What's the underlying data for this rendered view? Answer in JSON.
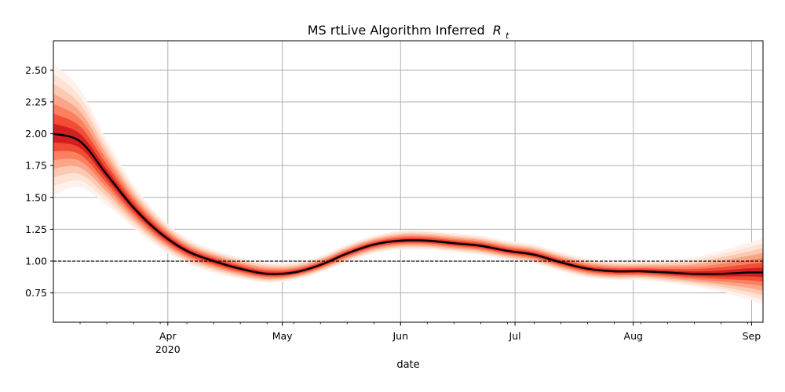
{
  "chart_data": {
    "type": "line",
    "title": "MS rtLive Algorithm Inferred",
    "title_symbol": "R",
    "title_subscript": "t",
    "xlabel": "date",
    "ylabel": "",
    "grid": true,
    "ylim": [
      0.52,
      2.73
    ],
    "xlim": [
      "2020-03-02",
      "2020-09-04"
    ],
    "y_ticks": [
      "0.75",
      "1.00",
      "1.25",
      "1.50",
      "1.75",
      "2.00",
      "2.25",
      "2.50"
    ],
    "x_ticks": [
      {
        "date": "2020-04-01",
        "label": "Apr",
        "sublabel": "2020"
      },
      {
        "date": "2020-05-01",
        "label": "May",
        "sublabel": ""
      },
      {
        "date": "2020-06-01",
        "label": "Jun",
        "sublabel": ""
      },
      {
        "date": "2020-07-01",
        "label": "Jul",
        "sublabel": ""
      },
      {
        "date": "2020-08-01",
        "label": "Aug",
        "sublabel": ""
      },
      {
        "date": "2020-09-01",
        "label": "Sep",
        "sublabel": ""
      }
    ],
    "reference_line": {
      "y": 1.0,
      "style": "dashed",
      "color": "#000000"
    },
    "colors": {
      "line": "#000000",
      "band_light": "#fde0d2",
      "band_mid": "#fb8a6a",
      "band_dark": "#cb181d",
      "grid": "#b0b0b0"
    },
    "series": [
      {
        "x": [
          "2020-03-02",
          "2020-03-09",
          "2020-03-16",
          "2020-03-23",
          "2020-03-30",
          "2020-04-06",
          "2020-04-13",
          "2020-04-20",
          "2020-04-27",
          "2020-05-04",
          "2020-05-11",
          "2020-05-18",
          "2020-05-25",
          "2020-06-01",
          "2020-06-08",
          "2020-06-15",
          "2020-06-22",
          "2020-06-29",
          "2020-07-06",
          "2020-07-13",
          "2020-07-20",
          "2020-07-27",
          "2020-08-03",
          "2020-08-10",
          "2020-08-17",
          "2020-08-24",
          "2020-08-31",
          "2020-09-04"
        ],
        "y": [
          2.0,
          1.94,
          1.68,
          1.42,
          1.22,
          1.08,
          1.0,
          0.94,
          0.9,
          0.91,
          0.97,
          1.06,
          1.13,
          1.16,
          1.16,
          1.14,
          1.12,
          1.08,
          1.05,
          0.99,
          0.94,
          0.92,
          0.92,
          0.91,
          0.9,
          0.9,
          0.91,
          0.91
        ],
        "band_95_low": [
          1.52,
          1.58,
          1.44,
          1.26,
          1.1,
          0.98,
          0.91,
          0.86,
          0.83,
          0.85,
          0.91,
          0.99,
          1.06,
          1.09,
          1.09,
          1.07,
          1.05,
          1.01,
          0.98,
          0.92,
          0.87,
          0.85,
          0.85,
          0.83,
          0.8,
          0.76,
          0.7,
          0.66
        ],
        "band_95_high": [
          2.55,
          2.35,
          1.95,
          1.6,
          1.35,
          1.18,
          1.09,
          1.03,
          0.99,
          0.99,
          1.04,
          1.13,
          1.2,
          1.24,
          1.24,
          1.22,
          1.2,
          1.16,
          1.13,
          1.07,
          1.02,
          1.0,
          1.0,
          1.01,
          1.03,
          1.08,
          1.14,
          1.18
        ]
      }
    ]
  }
}
